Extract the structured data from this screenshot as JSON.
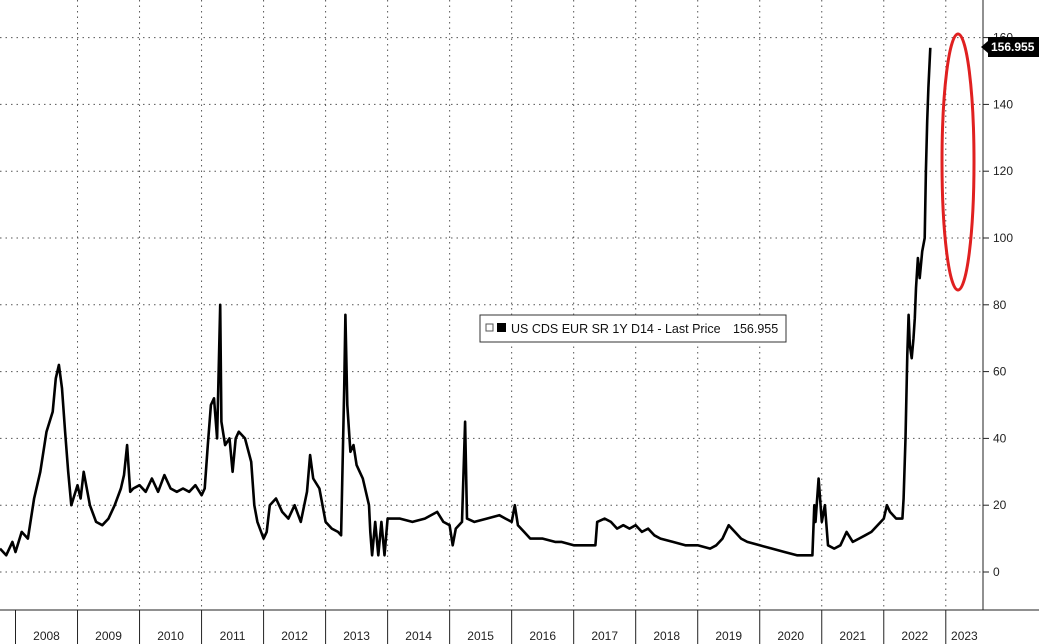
{
  "chart_data": {
    "type": "line",
    "legend": {
      "label": "US CDS EUR SR 1Y D14 - Last Price",
      "value": "156.955",
      "placement": "center"
    },
    "last_value_badge": "156.955",
    "x_ticks": [
      "2008",
      "2009",
      "2010",
      "2011",
      "2012",
      "2013",
      "2014",
      "2015",
      "2016",
      "2017",
      "2018",
      "2019",
      "2020",
      "2021",
      "2022",
      "2023"
    ],
    "y_ticks": [
      "0",
      "20",
      "40",
      "60",
      "80",
      "100",
      "120",
      "140",
      "160"
    ],
    "ylim": [
      -10,
      170
    ],
    "xlim": [
      2007.75,
      2023.6
    ],
    "y_axis_side": "right",
    "grid": true,
    "highlight": "red ellipse around the 2023 spike",
    "series": [
      {
        "color": "#000000",
        "points": [
          [
            2007.75,
            7
          ],
          [
            2007.85,
            5
          ],
          [
            2007.95,
            9
          ],
          [
            2008.0,
            6
          ],
          [
            2008.1,
            12
          ],
          [
            2008.2,
            10
          ],
          [
            2008.3,
            22
          ],
          [
            2008.4,
            30
          ],
          [
            2008.5,
            42
          ],
          [
            2008.6,
            48
          ],
          [
            2008.65,
            58
          ],
          [
            2008.7,
            62
          ],
          [
            2008.75,
            55
          ],
          [
            2008.8,
            42
          ],
          [
            2008.85,
            30
          ],
          [
            2008.9,
            20
          ],
          [
            2009.0,
            26
          ],
          [
            2009.05,
            22
          ],
          [
            2009.1,
            30
          ],
          [
            2009.2,
            20
          ],
          [
            2009.3,
            15
          ],
          [
            2009.4,
            14
          ],
          [
            2009.5,
            16
          ],
          [
            2009.6,
            20
          ],
          [
            2009.7,
            25
          ],
          [
            2009.75,
            29
          ],
          [
            2009.8,
            38
          ],
          [
            2009.85,
            24
          ],
          [
            2009.9,
            25
          ],
          [
            2010.0,
            26
          ],
          [
            2010.1,
            24
          ],
          [
            2010.2,
            28
          ],
          [
            2010.3,
            24
          ],
          [
            2010.4,
            29
          ],
          [
            2010.5,
            25
          ],
          [
            2010.6,
            24
          ],
          [
            2010.7,
            25
          ],
          [
            2010.8,
            24
          ],
          [
            2010.9,
            26
          ],
          [
            2011.0,
            23
          ],
          [
            2011.05,
            25
          ],
          [
            2011.1,
            38
          ],
          [
            2011.15,
            50
          ],
          [
            2011.2,
            52
          ],
          [
            2011.25,
            40
          ],
          [
            2011.3,
            80
          ],
          [
            2011.32,
            45
          ],
          [
            2011.38,
            38
          ],
          [
            2011.45,
            40
          ],
          [
            2011.5,
            30
          ],
          [
            2011.55,
            40
          ],
          [
            2011.6,
            42
          ],
          [
            2011.7,
            40
          ],
          [
            2011.8,
            33
          ],
          [
            2011.85,
            20
          ],
          [
            2011.9,
            15
          ],
          [
            2012.0,
            10
          ],
          [
            2012.05,
            12
          ],
          [
            2012.1,
            20
          ],
          [
            2012.2,
            22
          ],
          [
            2012.3,
            18
          ],
          [
            2012.4,
            16
          ],
          [
            2012.5,
            20
          ],
          [
            2012.6,
            15
          ],
          [
            2012.7,
            24
          ],
          [
            2012.75,
            35
          ],
          [
            2012.8,
            28
          ],
          [
            2012.9,
            25
          ],
          [
            2013.0,
            15
          ],
          [
            2013.1,
            13
          ],
          [
            2013.2,
            12
          ],
          [
            2013.25,
            11
          ],
          [
            2013.3,
            55
          ],
          [
            2013.32,
            77
          ],
          [
            2013.35,
            50
          ],
          [
            2013.4,
            36
          ],
          [
            2013.45,
            38
          ],
          [
            2013.5,
            32
          ],
          [
            2013.55,
            30
          ],
          [
            2013.6,
            28
          ],
          [
            2013.7,
            20
          ],
          [
            2013.72,
            12
          ],
          [
            2013.75,
            5
          ],
          [
            2013.8,
            15
          ],
          [
            2013.85,
            5
          ],
          [
            2013.9,
            15
          ],
          [
            2013.95,
            5
          ],
          [
            2014.0,
            16
          ],
          [
            2014.2,
            16
          ],
          [
            2014.4,
            15
          ],
          [
            2014.6,
            16
          ],
          [
            2014.8,
            18
          ],
          [
            2014.9,
            15
          ],
          [
            2015.0,
            14
          ],
          [
            2015.05,
            8
          ],
          [
            2015.1,
            13
          ],
          [
            2015.2,
            15
          ],
          [
            2015.25,
            45
          ],
          [
            2015.28,
            16
          ],
          [
            2015.4,
            15
          ],
          [
            2015.6,
            16
          ],
          [
            2015.8,
            17
          ],
          [
            2015.9,
            16
          ],
          [
            2016.0,
            15
          ],
          [
            2016.05,
            20
          ],
          [
            2016.1,
            14
          ],
          [
            2016.2,
            12
          ],
          [
            2016.3,
            10
          ],
          [
            2016.5,
            10
          ],
          [
            2016.7,
            9
          ],
          [
            2016.8,
            9
          ],
          [
            2017.0,
            8
          ],
          [
            2017.2,
            8
          ],
          [
            2017.35,
            8
          ],
          [
            2017.38,
            15
          ],
          [
            2017.5,
            16
          ],
          [
            2017.6,
            15
          ],
          [
            2017.7,
            13
          ],
          [
            2017.8,
            14
          ],
          [
            2017.9,
            13
          ],
          [
            2018.0,
            14
          ],
          [
            2018.1,
            12
          ],
          [
            2018.2,
            13
          ],
          [
            2018.3,
            11
          ],
          [
            2018.4,
            10
          ],
          [
            2018.6,
            9
          ],
          [
            2018.8,
            8
          ],
          [
            2019.0,
            8
          ],
          [
            2019.2,
            7
          ],
          [
            2019.3,
            8
          ],
          [
            2019.4,
            10
          ],
          [
            2019.5,
            14
          ],
          [
            2019.6,
            12
          ],
          [
            2019.7,
            10
          ],
          [
            2019.8,
            9
          ],
          [
            2020.0,
            8
          ],
          [
            2020.2,
            7
          ],
          [
            2020.4,
            6
          ],
          [
            2020.6,
            5
          ],
          [
            2020.8,
            5
          ],
          [
            2020.85,
            5
          ],
          [
            2020.88,
            20
          ],
          [
            2020.9,
            15
          ],
          [
            2020.95,
            28
          ],
          [
            2021.0,
            15
          ],
          [
            2021.05,
            20
          ],
          [
            2021.1,
            8
          ],
          [
            2021.2,
            7
          ],
          [
            2021.3,
            8
          ],
          [
            2021.4,
            12
          ],
          [
            2021.5,
            9
          ],
          [
            2021.6,
            10
          ],
          [
            2021.7,
            11
          ],
          [
            2021.8,
            12
          ],
          [
            2021.9,
            14
          ],
          [
            2022.0,
            16
          ],
          [
            2022.05,
            20
          ],
          [
            2022.1,
            18
          ],
          [
            2022.2,
            16
          ],
          [
            2022.3,
            16
          ],
          [
            2022.32,
            22
          ],
          [
            2022.35,
            40
          ],
          [
            2022.38,
            65
          ],
          [
            2022.4,
            77
          ],
          [
            2022.42,
            68
          ],
          [
            2022.45,
            64
          ],
          [
            2022.48,
            70
          ],
          [
            2022.5,
            76
          ],
          [
            2022.52,
            85
          ],
          [
            2022.55,
            94
          ],
          [
            2022.58,
            88
          ],
          [
            2022.62,
            96
          ],
          [
            2022.66,
            100
          ],
          [
            2022.68,
            120
          ],
          [
            2022.7,
            135
          ],
          [
            2022.72,
            145
          ],
          [
            2022.75,
            156.955
          ]
        ]
      }
    ]
  }
}
